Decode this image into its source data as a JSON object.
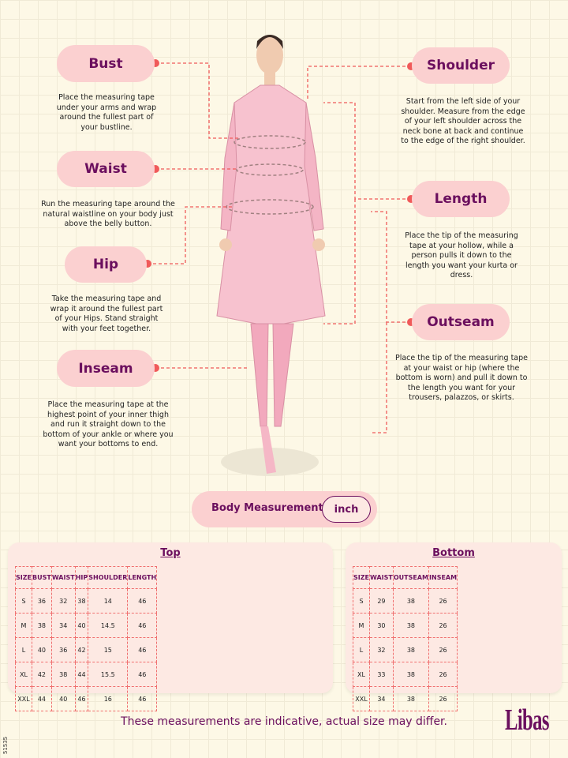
{
  "guides": [
    {
      "label": "Bust",
      "text": "Place the measuring tape under your arms and wrap around the fullest part of your bustline."
    },
    {
      "label": "Waist",
      "text": "Run the measuring tape around the natural waistline on your body just above the belly button."
    },
    {
      "label": "Hip",
      "text": "Take the measuring tape and wrap it around the fullest part of your Hips. Stand straight with your feet together."
    },
    {
      "label": "Inseam",
      "text": "Place the measuring tape at the highest point of your inner thigh and run it straight down to the bottom of your ankle or where you want your bottoms to end."
    },
    {
      "label": "Shoulder",
      "text": "Start from the left side of your shoulder. Measure from the edge of your left shoulder across the neck bone at back and continue to the edge of the right shoulder."
    },
    {
      "label": "Length",
      "text": "Place the tip of the measuring tape at your hollow, while a person pulls it down to the length you want your kurta or dress."
    },
    {
      "label": "Outseam",
      "text": "Place the tip of the measuring tape at your waist or hip (where the bottom is worn) and pull it down to the length you want for your trousers, palazzos, or skirts."
    }
  ],
  "unit_selector": {
    "label": "Body Measurement",
    "unit": "inch"
  },
  "top": {
    "title": "Top",
    "headers": [
      "SIZE",
      "BUST",
      "WAIST",
      "HIP",
      "SHOULDER",
      "LENGTH"
    ],
    "rows": [
      [
        "S",
        "36",
        "32",
        "38",
        "14",
        "46"
      ],
      [
        "M",
        "38",
        "34",
        "40",
        "14.5",
        "46"
      ],
      [
        "L",
        "40",
        "36",
        "42",
        "15",
        "46"
      ],
      [
        "XL",
        "42",
        "38",
        "44",
        "15.5",
        "46"
      ],
      [
        "XXL",
        "44",
        "40",
        "46",
        "16",
        "46"
      ]
    ]
  },
  "bottom": {
    "title": "Bottom",
    "headers": [
      "SIZE",
      "WAIST",
      "OUTSEAM",
      "INSEAM"
    ],
    "rows": [
      [
        "S",
        "29",
        "38",
        "26"
      ],
      [
        "M",
        "30",
        "38",
        "26"
      ],
      [
        "L",
        "32",
        "38",
        "26"
      ],
      [
        "XL",
        "33",
        "38",
        "26"
      ],
      [
        "XXL",
        "34",
        "38",
        "26"
      ]
    ]
  },
  "footer": {
    "note": "These measurements are indicative, actual size may differ.",
    "logo": "Libas",
    "code": "51535"
  },
  "colors": {
    "accent": "#6b0f5e",
    "pill": "#fbd0d0",
    "dash": "#f05a5a",
    "background": "#fdf8e6"
  }
}
